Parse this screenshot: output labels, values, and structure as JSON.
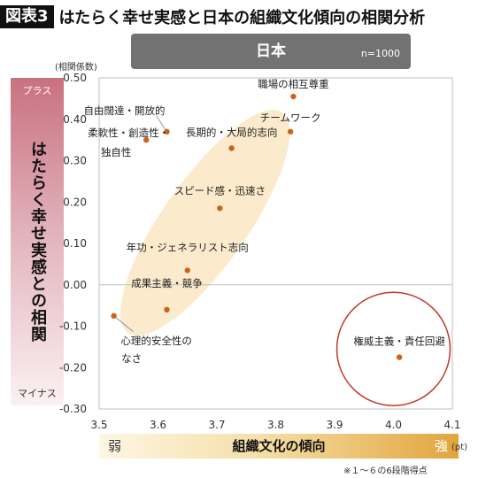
{
  "header": {
    "figure_label": "図表3",
    "title": "はたらく幸せ実感と日本の組織文化傾向の相関分析"
  },
  "panel": {
    "title": "日本",
    "n_label": "n=1000"
  },
  "y_band": {
    "unit": "(相関係数)",
    "plus": "プラス",
    "minus": "マイナス",
    "label": "はたらく幸せ実感との相関"
  },
  "x_band": {
    "weak": "弱",
    "label": "組織文化の傾向",
    "strong": "強",
    "unit": "(pt)"
  },
  "footnote": "※１～６の6段階得点",
  "colors": {
    "point": "#c9651a",
    "ellipse_fill": "#fbeacb",
    "circle_stroke": "#c0392b",
    "axis": "#bfbfbf"
  },
  "chart_data": {
    "type": "scatter",
    "xlim": [
      3.5,
      4.1
    ],
    "ylim": [
      -0.3,
      0.5
    ],
    "xticks": [
      "3.5",
      "3.6",
      "3.7",
      "3.8",
      "3.9",
      "4.0",
      "4.1"
    ],
    "yticks": [
      "0.50",
      "0.40",
      "0.30",
      "0.20",
      "0.10",
      "0.00",
      "-0.10",
      "-0.20",
      "-0.30"
    ],
    "grid": false,
    "points": [
      {
        "label": "職場の相互尊重",
        "x": 3.83,
        "y": 0.455
      },
      {
        "label": "チームワーク",
        "x": 3.825,
        "y": 0.37
      },
      {
        "label": "自由闊達・開放的",
        "x": 3.615,
        "y": 0.37
      },
      {
        "label": "長期的・大局的志向",
        "x": 3.725,
        "y": 0.33
      },
      {
        "label": "柔軟性・創造性・独自性",
        "x": 3.58,
        "y": 0.35
      },
      {
        "label": "スピード感・迅速さ",
        "x": 3.705,
        "y": 0.185
      },
      {
        "label": "年功・ジェネラリスト志向",
        "x": 3.65,
        "y": 0.035
      },
      {
        "label": "成果主義・競争",
        "x": 3.615,
        "y": -0.06
      },
      {
        "label": "心理的安全性のなさ",
        "x": 3.525,
        "y": -0.075
      },
      {
        "label": "権威主義・責任回避",
        "x": 4.01,
        "y": -0.175
      }
    ]
  }
}
